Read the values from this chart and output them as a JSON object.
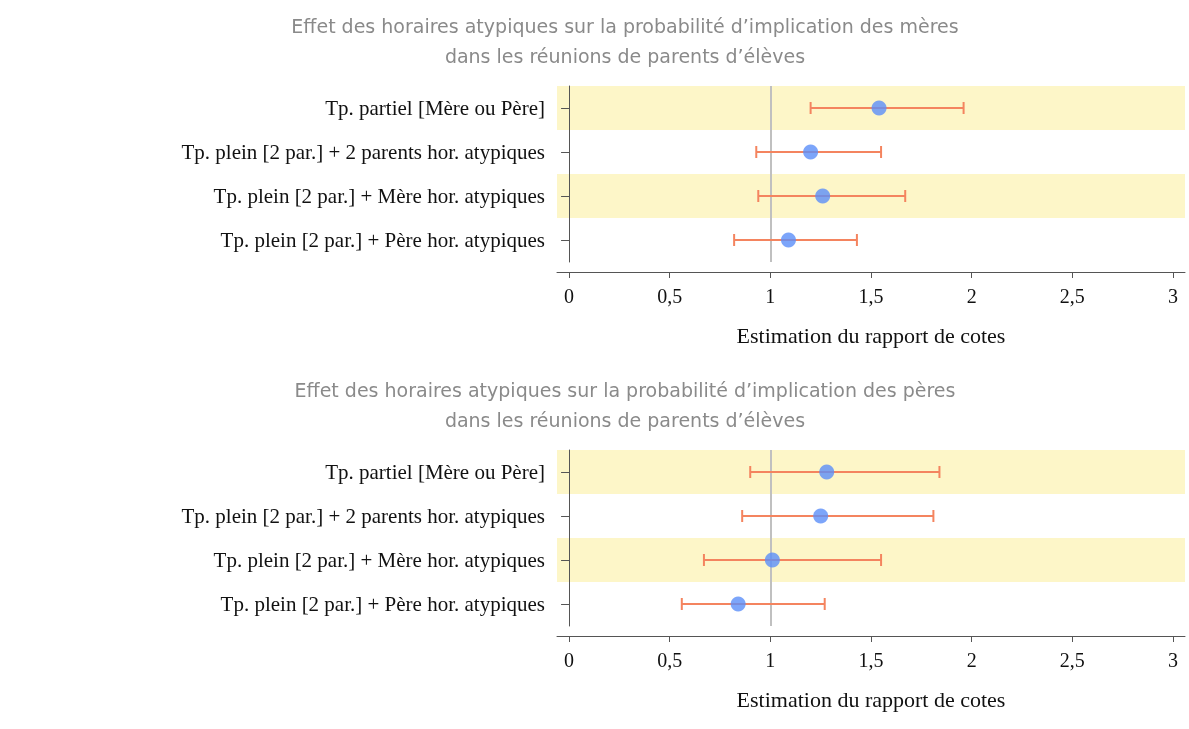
{
  "chart_data": [
    {
      "type": "scatter",
      "title": "Effet des horaires atypiques sur la probabilité d’implication des mères\ndans les réunions de parents d’élèves",
      "xlabel": "Estimation du rapport de cotes",
      "categories": [
        "Tp. partiel [Mère ou Père]",
        "Tp. plein [2 par.] + 2 parents hor. atypiques",
        "Tp. plein [2 par.] + Mère hor. atypiques",
        "Tp. plein [2 par.] + Père hor. atypiques"
      ],
      "orientation": "horizontal",
      "color": "#5b8ff9",
      "marker": "circle",
      "values": [
        1.54,
        1.2,
        1.26,
        1.09
      ],
      "errors": [
        [
          1.2,
          1.96
        ],
        [
          0.93,
          1.55
        ],
        [
          0.94,
          1.67
        ],
        [
          0.82,
          1.43
        ]
      ],
      "xlim": [
        -0.06,
        3.06
      ],
      "xticks": [
        0,
        {
          "value": 0.5,
          "label": "0,5"
        },
        1,
        {
          "value": 1.5,
          "label": "1,5"
        },
        2,
        {
          "value": 2.5,
          "label": "2,5"
        },
        3
      ],
      "ref_lines": [
        {
          "axis": "x",
          "value": 1,
          "label": null,
          "color": "#c0c0c0"
        }
      ],
      "bands": [
        {
          "axis": "y",
          "from": "Tp. partiel [Mère ou Père]",
          "to": "Tp. partiel [Mère ou Père]",
          "color": "#fdf6c8"
        },
        {
          "axis": "y",
          "from": "Tp. plein [2 par.] + Mère hor. atypiques",
          "to": "Tp. plein [2 par.] + Mère hor. atypiques",
          "color": "#fdf6c8"
        }
      ],
      "grid": false
    },
    {
      "type": "scatter",
      "title": "Effet des horaires atypiques sur la probabilité d’implication des pères\ndans les réunions de parents d’élèves",
      "xlabel": "Estimation du rapport de cotes",
      "categories": [
        "Tp. partiel [Mère ou Père]",
        "Tp. plein [2 par.] + 2 parents hor. atypiques",
        "Tp. plein [2 par.] + Mère hor. atypiques",
        "Tp. plein [2 par.] + Père hor. atypiques"
      ],
      "orientation": "horizontal",
      "color": "#5b8ff9",
      "marker": "circle",
      "values": [
        1.28,
        1.25,
        1.01,
        0.84
      ],
      "errors": [
        [
          0.9,
          1.84
        ],
        [
          0.86,
          1.81
        ],
        [
          0.67,
          1.55
        ],
        [
          0.56,
          1.27
        ]
      ],
      "xlim": [
        -0.06,
        3.06
      ],
      "xticks": [
        0,
        {
          "value": 0.5,
          "label": "0,5"
        },
        1,
        {
          "value": 1.5,
          "label": "1,5"
        },
        2,
        {
          "value": 2.5,
          "label": "2,5"
        },
        3
      ],
      "ref_lines": [
        {
          "axis": "x",
          "value": 1,
          "label": null,
          "color": "#c0c0c0"
        }
      ],
      "bands": [
        {
          "axis": "y",
          "from": "Tp. partiel [Mère ou Père]",
          "to": "Tp. partiel [Mère ou Père]",
          "color": "#fdf6c8"
        },
        {
          "axis": "y",
          "from": "Tp. plein [2 par.] + Mère hor. atypiques",
          "to": "Tp. plein [2 par.] + Mère hor. atypiques",
          "color": "#fdf6c8"
        }
      ],
      "grid": false
    }
  ]
}
